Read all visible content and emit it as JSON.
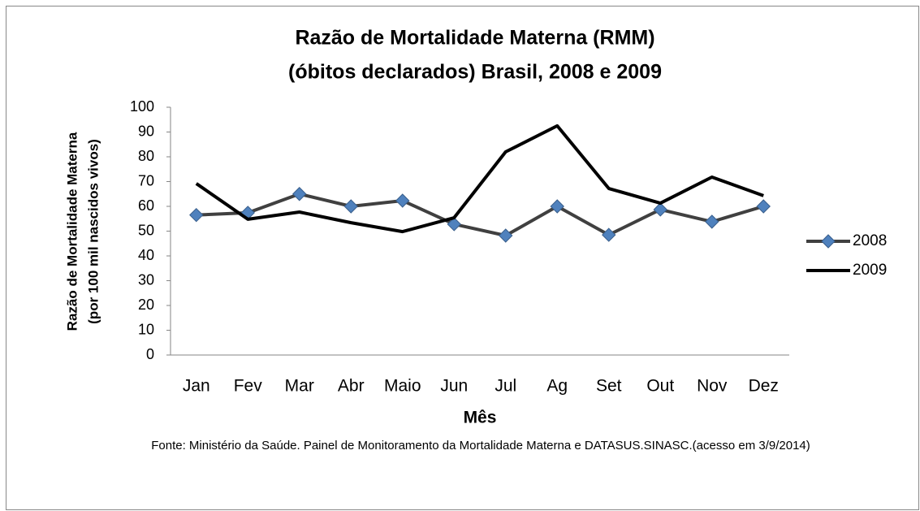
{
  "chart_data": {
    "type": "line",
    "title": "Razão de Mortalidade Materna (RMM)",
    "subtitle": "(óbitos declarados) Brasil, 2008 e 2009",
    "y_label": [
      "Razão de Mortalidade Materna",
      "(por 100 mil nascidos vivos)"
    ],
    "x_label": "Mês",
    "source": "Fonte: Ministério da Saúde.  Painel de Monitoramento  da Mortalidade Materna e DATASUS.SINASC.(acesso em 3/9/2014)",
    "categories": [
      "Jan",
      "Fev",
      "Mar",
      "Abr",
      "Maio",
      "Jun",
      "Jul",
      "Ag",
      "Set",
      "Out",
      "Nov",
      "Dez"
    ],
    "series": [
      {
        "name": "2008",
        "color": "#404040",
        "marker": "diamond",
        "marker_color": "#4f81bd",
        "values": [
          56.5,
          57.4,
          65,
          60,
          62.3,
          52.8,
          48.2,
          60,
          48.5,
          58.7,
          53.8,
          60
        ]
      },
      {
        "name": "2009",
        "color": "#000000",
        "values": [
          69.2,
          54.8,
          57.7,
          53.4,
          49.8,
          55.4,
          82,
          92.5,
          67.2,
          61.3,
          71.8,
          64.3
        ]
      }
    ],
    "ylim": [
      0,
      100
    ],
    "yticks": [
      0,
      10,
      20,
      30,
      40,
      50,
      60,
      70,
      80,
      90,
      100
    ],
    "grid": false,
    "legend": "right"
  }
}
